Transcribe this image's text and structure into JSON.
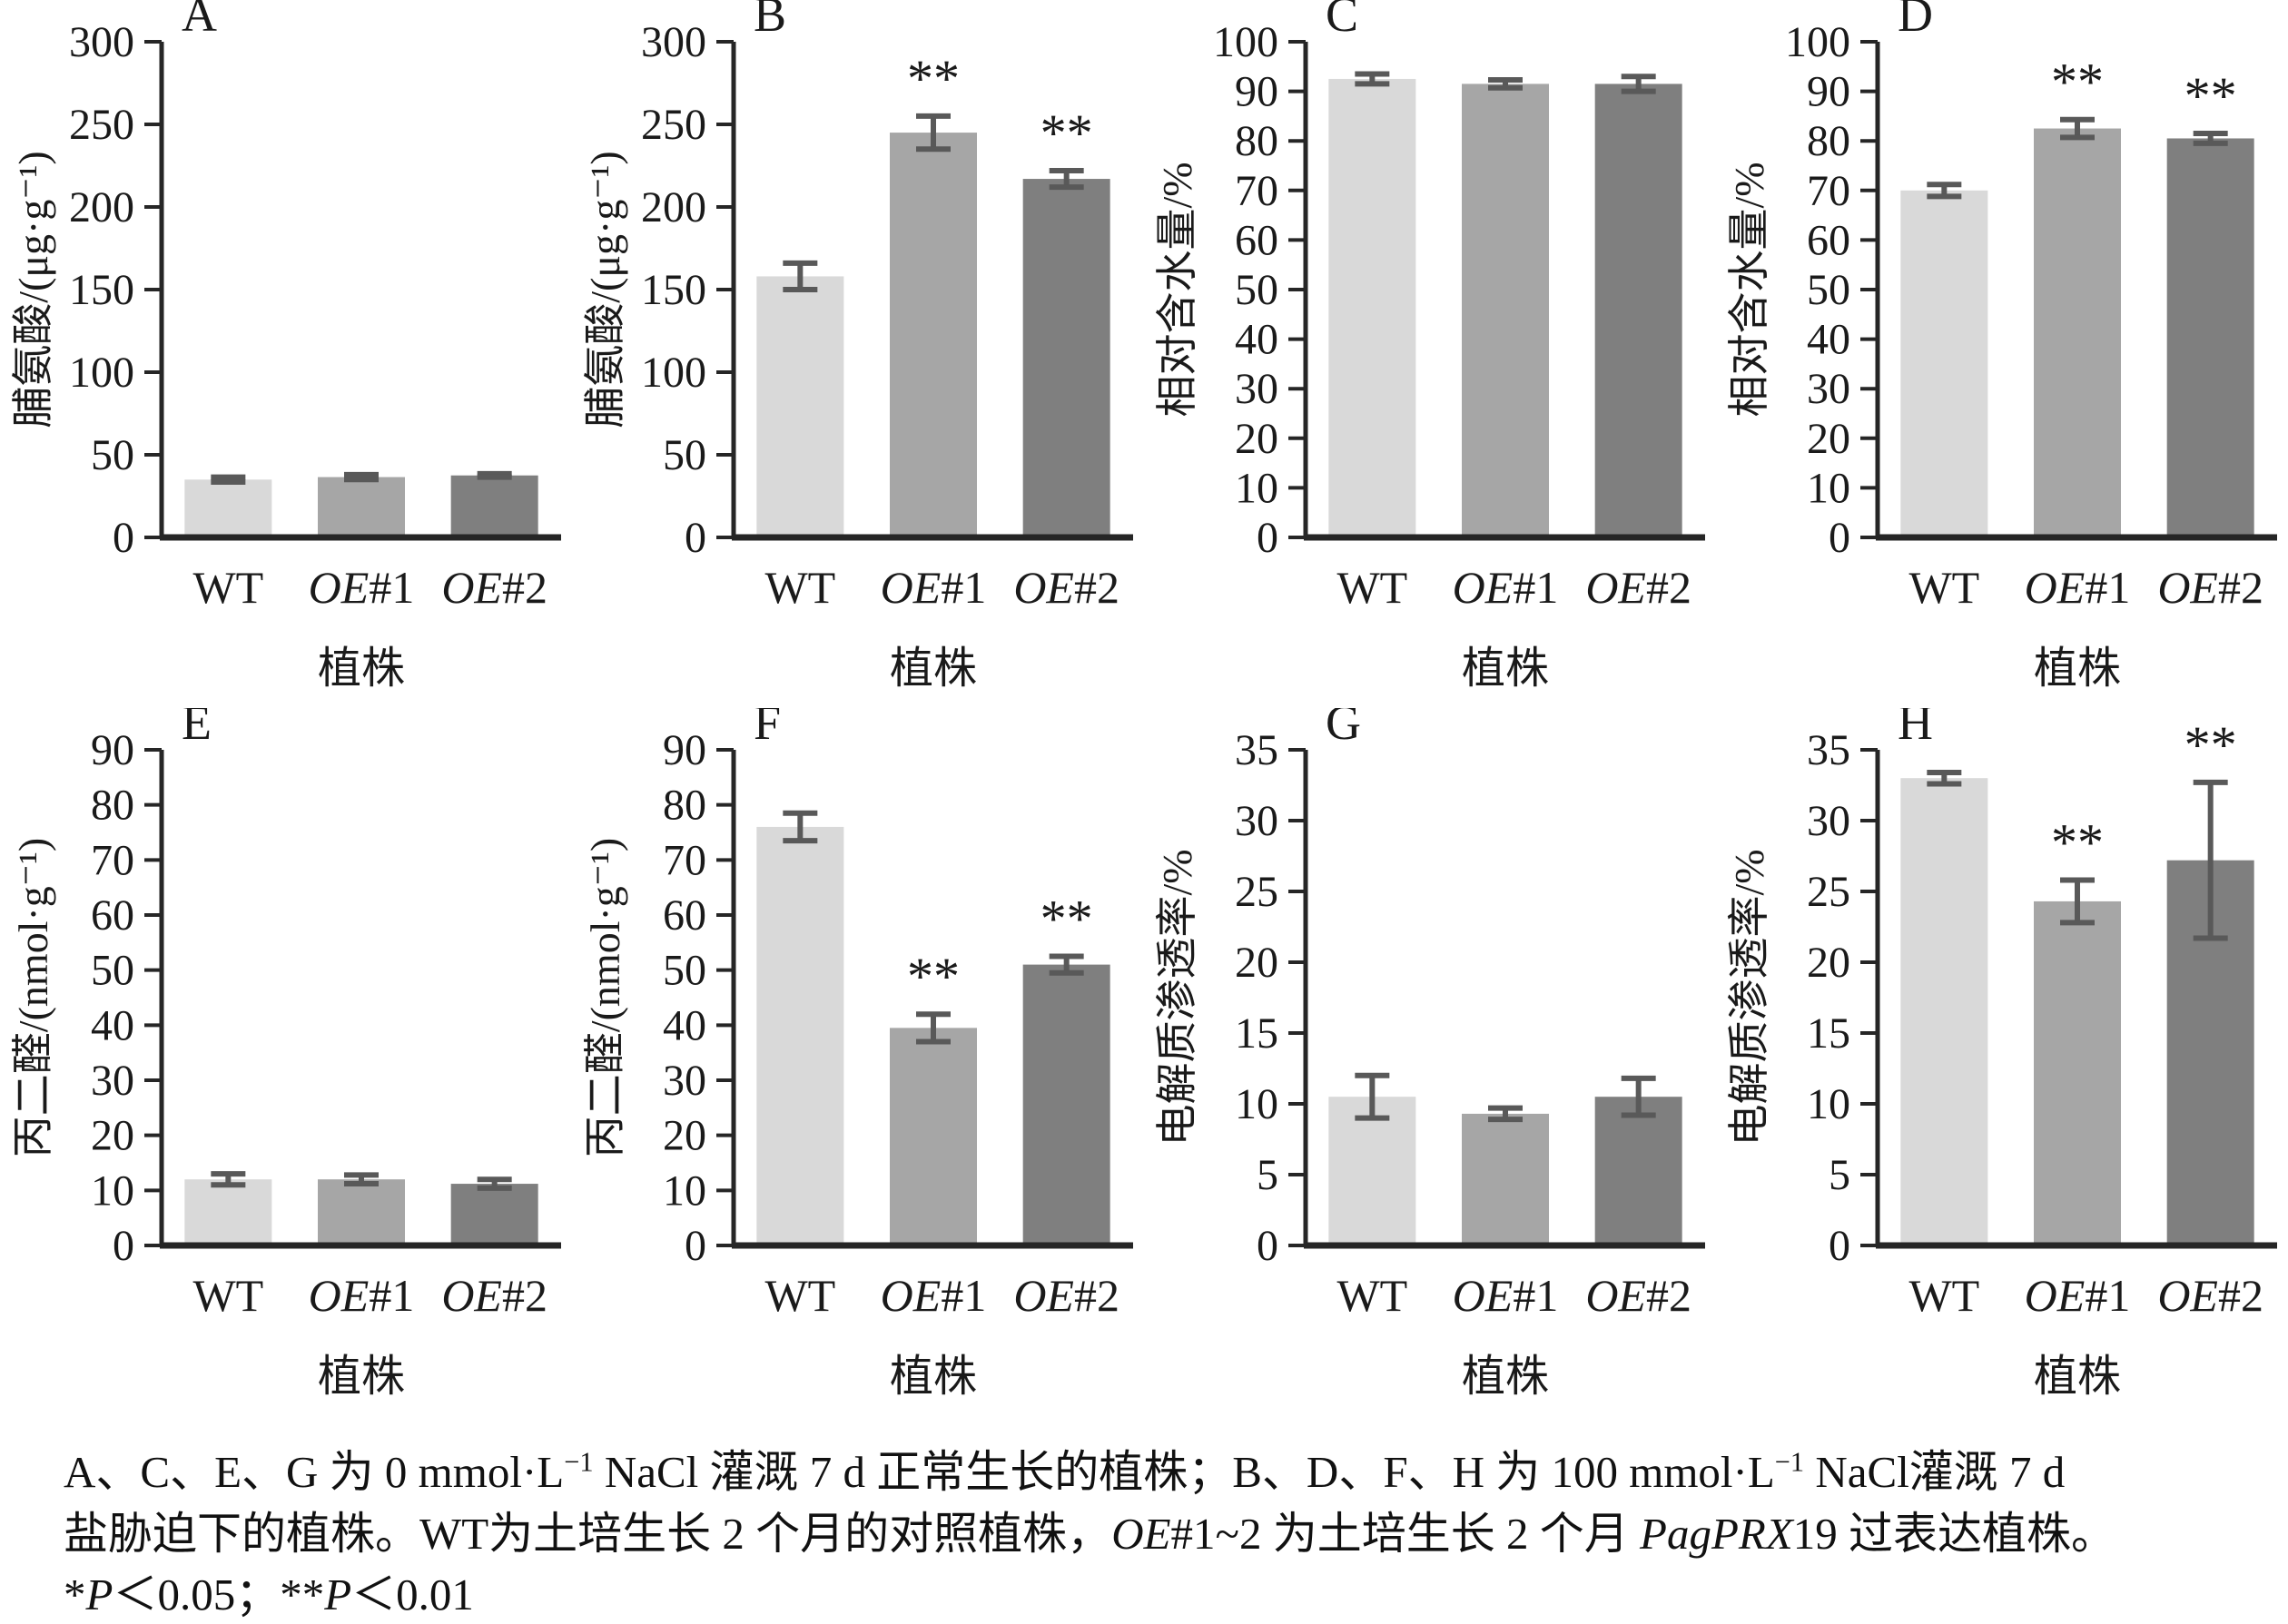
{
  "figure_title": "",
  "colors": {
    "bar_wt": "#d9d9d9",
    "bar_oe1": "#a6a6a6",
    "bar_oe2": "#7f7f7f",
    "error_bar": "#595959",
    "axis": "#262626",
    "text": "#1a1a1a"
  },
  "categories": [
    "WT",
    "OE#1",
    "OE#2"
  ],
  "xlabel": "植株",
  "chart_data": [
    {
      "type": "bar",
      "panel": "A",
      "ylabel": "脯氨酸/(μg·g⁻¹)",
      "ymax": 300,
      "ystep": 50,
      "ylim": [
        0,
        300
      ],
      "categories": [
        "WT",
        "OE#1",
        "OE#2"
      ],
      "values": [
        35,
        36.5,
        37.5
      ],
      "errors": [
        1.5,
        1.5,
        1
      ],
      "sig": [
        "",
        "",
        ""
      ],
      "xlabel": "植株",
      "grid": "off",
      "legend": "none"
    },
    {
      "type": "bar",
      "panel": "B",
      "ylabel": "脯氨酸/(μg·g⁻¹)",
      "ymax": 300,
      "ystep": 50,
      "ylim": [
        0,
        300
      ],
      "categories": [
        "WT",
        "OE#1",
        "OE#2"
      ],
      "values": [
        158,
        245,
        217
      ],
      "errors": [
        8,
        10,
        5
      ],
      "sig": [
        "",
        "**",
        "**"
      ],
      "xlabel": "植株",
      "grid": "off",
      "legend": "none"
    },
    {
      "type": "bar",
      "panel": "C",
      "ylabel": "相对含水量/%",
      "ymax": 100,
      "ystep": 10,
      "ylim": [
        0,
        100
      ],
      "categories": [
        "WT",
        "OE#1",
        "OE#2"
      ],
      "values": [
        92.5,
        91.5,
        91.5
      ],
      "errors": [
        1,
        0.8,
        1.5
      ],
      "sig": [
        "",
        "",
        ""
      ],
      "xlabel": "植株",
      "grid": "off",
      "legend": "none"
    },
    {
      "type": "bar",
      "panel": "D",
      "ylabel": "相对含水量/%",
      "ymax": 100,
      "ystep": 10,
      "ylim": [
        0,
        100
      ],
      "categories": [
        "WT",
        "OE#1",
        "OE#2"
      ],
      "values": [
        70,
        82.5,
        80.5
      ],
      "errors": [
        1.2,
        1.8,
        1
      ],
      "sig": [
        "",
        "**",
        "**"
      ],
      "xlabel": "植株",
      "grid": "off",
      "legend": "none"
    },
    {
      "type": "bar",
      "panel": "E",
      "ylabel": "丙二醛/(nmol·g⁻¹)",
      "ymax": 90,
      "ystep": 10,
      "ylim": [
        0,
        90
      ],
      "categories": [
        "WT",
        "OE#1",
        "OE#2"
      ],
      "values": [
        12,
        12,
        11.2
      ],
      "errors": [
        1,
        0.8,
        0.8
      ],
      "sig": [
        "",
        "",
        ""
      ],
      "xlabel": "植株",
      "grid": "off",
      "legend": "none"
    },
    {
      "type": "bar",
      "panel": "F",
      "ylabel": "丙二醛/(nmol·g⁻¹)",
      "ymax": 90,
      "ystep": 10,
      "ylim": [
        0,
        90
      ],
      "categories": [
        "WT",
        "OE#1",
        "OE#2"
      ],
      "values": [
        76,
        39.5,
        51
      ],
      "errors": [
        2.5,
        2.5,
        1.5
      ],
      "sig": [
        "",
        "**",
        "**"
      ],
      "xlabel": "植株",
      "grid": "off",
      "legend": "none"
    },
    {
      "type": "bar",
      "panel": "G",
      "ylabel": "电解质渗透率/%",
      "ymax": 35,
      "ystep": 5,
      "ylim": [
        0,
        35
      ],
      "categories": [
        "WT",
        "OE#1",
        "OE#2"
      ],
      "values": [
        10.5,
        9.3,
        10.5
      ],
      "errors": [
        1.5,
        0.4,
        1.3
      ],
      "sig": [
        "",
        "",
        ""
      ],
      "xlabel": "植株",
      "grid": "off",
      "legend": "none"
    },
    {
      "type": "bar",
      "panel": "H",
      "ylabel": "电解质渗透率/%",
      "ymax": 35,
      "ystep": 5,
      "ylim": [
        0,
        35
      ],
      "categories": [
        "WT",
        "OE#1",
        "OE#2"
      ],
      "values": [
        33,
        24.3,
        27.2
      ],
      "errors": [
        0.4,
        1.5,
        5.5
      ],
      "sig": [
        "",
        "**",
        "**"
      ],
      "xlabel": "植株",
      "grid": "off",
      "legend": "none"
    }
  ],
  "caption": {
    "lines": [
      [
        {
          "t": "A、C、E、G 为 0 mmol·L"
        },
        {
          "t": "−1",
          "sup": true
        },
        {
          "t": " NaCl 灌溉 7 d 正常生长的植株；B、D、F、H 为 100 mmol·L"
        },
        {
          "t": "−1",
          "sup": true
        },
        {
          "t": "  NaCl灌溉 7 d"
        }
      ],
      [
        {
          "t": "盐胁迫下的植株。WT为土培生长 2 个月的对照植株，"
        },
        {
          "t": "OE",
          "i": true
        },
        {
          "t": "#1~2 为土培生长 2 个月 "
        },
        {
          "t": "PagPRX",
          "i": true
        },
        {
          "t": "19 过表达植株。"
        }
      ],
      [
        {
          "t": "*"
        },
        {
          "t": "P",
          "i": true
        },
        {
          "t": "＜0.05；**"
        },
        {
          "t": "P",
          "i": true
        },
        {
          "t": "＜0.01"
        }
      ]
    ]
  }
}
